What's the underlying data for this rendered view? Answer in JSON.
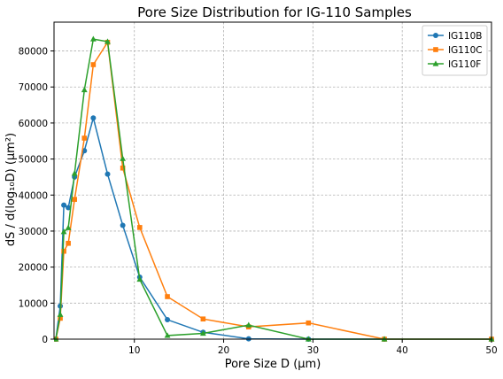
{
  "chart_data": {
    "type": "line",
    "title": "Pore Size Distribution for IG-110 Samples",
    "xlabel": "Pore Size D (µm)",
    "ylabel": "dS / d(log₁₀D) (µm²)",
    "xlim": [
      1,
      50
    ],
    "ylim": [
      0,
      88000
    ],
    "xticks": [
      10,
      20,
      30,
      40,
      50
    ],
    "yticks": [
      0,
      10000,
      20000,
      30000,
      40000,
      50000,
      60000,
      70000,
      80000
    ],
    "grid": true,
    "legend_position": "top-right",
    "series": [
      {
        "name": "IG110B",
        "color": "#1f77b4",
        "marker": "circle",
        "points": [
          [
            0.5,
            0
          ],
          [
            1.2,
            0
          ],
          [
            1.7,
            9200
          ],
          [
            2.1,
            37200
          ],
          [
            2.6,
            36500
          ],
          [
            3.3,
            45000
          ],
          [
            4.4,
            52300
          ],
          [
            5.4,
            61400
          ],
          [
            7,
            45800
          ],
          [
            8.7,
            31600
          ],
          [
            10.6,
            17200
          ],
          [
            13.7,
            5400
          ],
          [
            17.7,
            1900
          ],
          [
            22.8,
            100
          ],
          [
            29.5,
            0
          ],
          [
            38,
            0
          ],
          [
            50,
            0
          ]
        ]
      },
      {
        "name": "IG110C",
        "color": "#ff7f0e",
        "marker": "square",
        "points": [
          [
            0.5,
            0
          ],
          [
            1.2,
            0
          ],
          [
            1.7,
            5800
          ],
          [
            2.1,
            24400
          ],
          [
            2.6,
            26600
          ],
          [
            3.3,
            38800
          ],
          [
            4.4,
            55800
          ],
          [
            5.4,
            76200
          ],
          [
            7,
            82400
          ],
          [
            8.7,
            47500
          ],
          [
            10.6,
            31000
          ],
          [
            13.7,
            11800
          ],
          [
            17.7,
            5600
          ],
          [
            22.8,
            3400
          ],
          [
            29.5,
            4500
          ],
          [
            38,
            0
          ],
          [
            50,
            0
          ]
        ]
      },
      {
        "name": "IG110F",
        "color": "#2ca02c",
        "marker": "triangle",
        "points": [
          [
            0.5,
            0
          ],
          [
            1.2,
            0
          ],
          [
            1.7,
            6800
          ],
          [
            2.1,
            29800
          ],
          [
            2.6,
            30900
          ],
          [
            3.3,
            46000
          ],
          [
            4.4,
            69200
          ],
          [
            5.4,
            83300
          ],
          [
            7,
            82600
          ],
          [
            8.7,
            50100
          ],
          [
            10.6,
            16600
          ],
          [
            13.7,
            1000
          ],
          [
            17.7,
            1600
          ],
          [
            22.8,
            3900
          ],
          [
            29.5,
            0
          ],
          [
            38,
            0
          ],
          [
            50,
            0
          ]
        ]
      }
    ]
  }
}
